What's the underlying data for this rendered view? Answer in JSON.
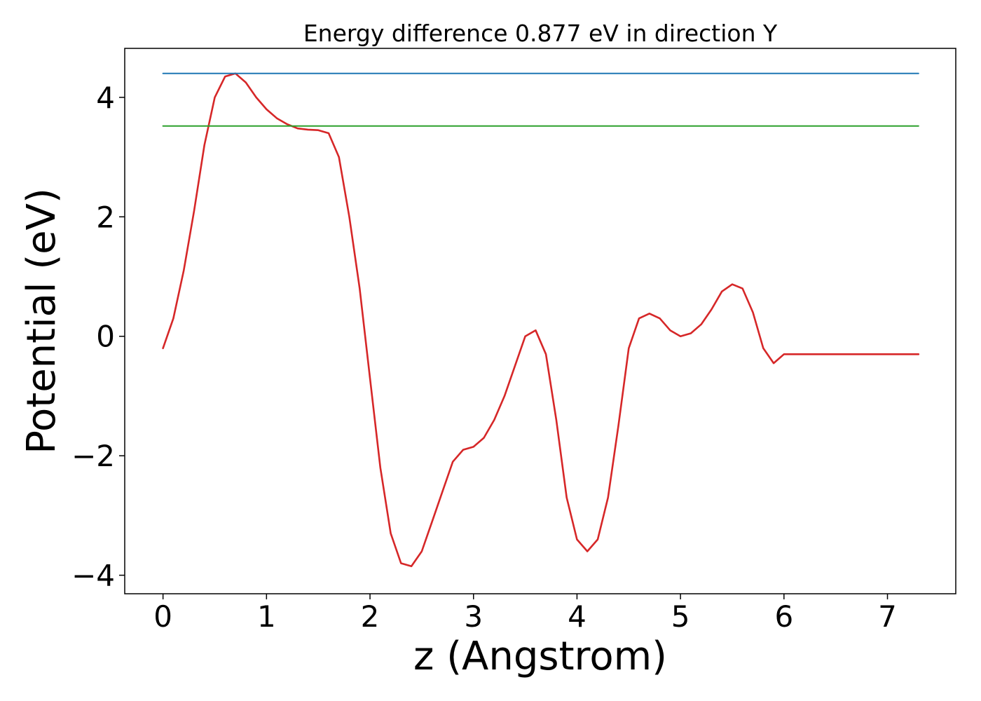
{
  "chart_data": {
    "type": "line",
    "title": "Energy difference 0.877 eV in direction Y",
    "xlabel": "z (Angstrom)",
    "ylabel": "Potential (eV)",
    "xlim": [
      -0.37,
      7.66
    ],
    "ylim": [
      -4.31,
      4.82
    ],
    "xticks": [
      0,
      1,
      2,
      3,
      4,
      5,
      6,
      7
    ],
    "xtick_labels": [
      "0",
      "1",
      "2",
      "3",
      "4",
      "5",
      "6",
      "7"
    ],
    "yticks": [
      -4,
      -2,
      0,
      2,
      4
    ],
    "ytick_labels": [
      "−4",
      "−2",
      "0",
      "2",
      "4"
    ],
    "grid": false,
    "legend": "none",
    "series": [
      {
        "color": "#d62728",
        "x": [
          0.0,
          0.1,
          0.2,
          0.3,
          0.4,
          0.5,
          0.6,
          0.7,
          0.8,
          0.9,
          1.0,
          1.1,
          1.2,
          1.3,
          1.4,
          1.5,
          1.6,
          1.7,
          1.8,
          1.9,
          2.0,
          2.1,
          2.2,
          2.3,
          2.4,
          2.5,
          2.6,
          2.7,
          2.8,
          2.9,
          3.0,
          3.1,
          3.2,
          3.3,
          3.4,
          3.5,
          3.6,
          3.7,
          3.8,
          3.9,
          4.0,
          4.1,
          4.2,
          4.3,
          4.4,
          4.5,
          4.6,
          4.7,
          4.8,
          4.9,
          5.0,
          5.1,
          5.2,
          5.3,
          5.4,
          5.5,
          5.6,
          5.7,
          5.8,
          5.9,
          6.0,
          6.1,
          6.2,
          6.3,
          6.4,
          6.5,
          6.6,
          6.7,
          6.8,
          6.9,
          7.0,
          7.1,
          7.2,
          7.3
        ],
        "y": [
          -0.2,
          0.3,
          1.1,
          2.1,
          3.2,
          4.0,
          4.35,
          4.4,
          4.25,
          4.0,
          3.8,
          3.65,
          3.55,
          3.48,
          3.46,
          3.45,
          3.4,
          3.0,
          2.0,
          0.8,
          -0.7,
          -2.2,
          -3.3,
          -3.8,
          -3.85,
          -3.6,
          -3.1,
          -2.6,
          -2.1,
          -1.9,
          -1.85,
          -1.7,
          -1.4,
          -1.0,
          -0.5,
          0.0,
          0.1,
          -0.3,
          -1.4,
          -2.7,
          -3.4,
          -3.6,
          -3.4,
          -2.7,
          -1.5,
          -0.2,
          0.3,
          0.38,
          0.3,
          0.1,
          0.0,
          0.05,
          0.2,
          0.45,
          0.75,
          0.87,
          0.8,
          0.4,
          -0.2,
          -0.45,
          -0.3,
          -0.3,
          -0.3,
          -0.3,
          -0.3,
          -0.3,
          -0.3,
          -0.3,
          -0.3,
          -0.3,
          -0.3,
          -0.3,
          -0.3,
          -0.3
        ]
      },
      {
        "color": "#1f77b4",
        "x": [
          0.0,
          7.3
        ],
        "y": [
          4.4,
          4.4
        ]
      },
      {
        "color": "#2ca02c",
        "x": [
          0.0,
          7.3
        ],
        "y": [
          3.52,
          3.52
        ]
      }
    ]
  }
}
